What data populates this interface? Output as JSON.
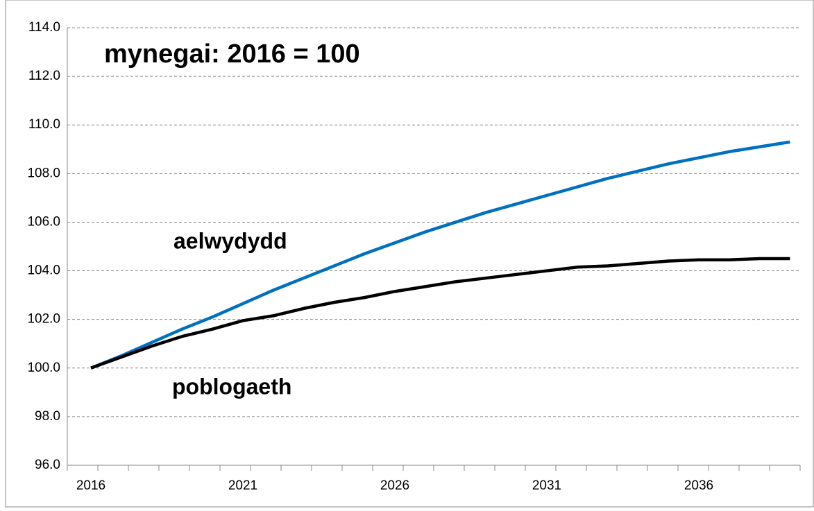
{
  "chart_data": {
    "type": "line",
    "title": "mynegai: 2016 = 100",
    "categories": [
      "2016",
      null,
      null,
      null,
      null,
      "2021",
      null,
      null,
      null,
      null,
      "2026",
      null,
      null,
      null,
      null,
      "2031",
      null,
      null,
      null,
      null,
      "2036",
      null,
      null,
      null
    ],
    "series": [
      {
        "name": "aelwydydd",
        "color": "#0070c0",
        "values": [
          100,
          100.5,
          101.05,
          101.6,
          102.1,
          102.65,
          103.2,
          103.7,
          104.2,
          104.7,
          105.15,
          105.6,
          106.0,
          106.4,
          106.75,
          107.1,
          107.45,
          107.8,
          108.1,
          108.4,
          108.65,
          108.9,
          109.1,
          109.3
        ]
      },
      {
        "name": "poblogaeth",
        "color": "#000000",
        "values": [
          100,
          100.45,
          100.9,
          101.3,
          101.6,
          101.95,
          102.15,
          102.45,
          102.7,
          102.9,
          103.15,
          103.35,
          103.55,
          103.7,
          103.85,
          104.0,
          104.15,
          104.2,
          104.3,
          104.4,
          104.45,
          104.45,
          104.5,
          104.5
        ]
      }
    ],
    "ylim": [
      96,
      114
    ],
    "yticks": [
      {
        "value": 96,
        "label": "96.0"
      },
      {
        "value": 98,
        "label": "98.0"
      },
      {
        "value": 100,
        "label": "100.0"
      },
      {
        "value": 102,
        "label": "102.0"
      },
      {
        "value": 104,
        "label": "104.0"
      },
      {
        "value": 106,
        "label": "106.0"
      },
      {
        "value": 108,
        "label": "108.0"
      },
      {
        "value": 110,
        "label": "110.0"
      },
      {
        "value": 112,
        "label": "112.0"
      },
      {
        "value": 114,
        "label": "114.0"
      }
    ],
    "grid": true
  }
}
